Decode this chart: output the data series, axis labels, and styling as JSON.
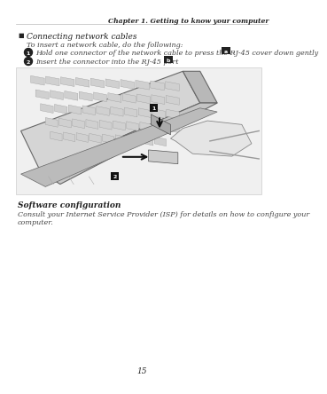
{
  "page_bg": "#ffffff",
  "header_text": "Chapter 1. Getting to know your computer",
  "header_font_size": 5.5,
  "section_bullet": "■",
  "section_title": "Connecting network cables",
  "section_font_size": 6.5,
  "intro_text": "To insert a network cable, do the following:",
  "intro_font_size": 5.8,
  "step1_text": "Hold one connector of the network cable to press the RJ-45 cover down gently",
  "step1_badge": "a",
  "step1_font_size": 5.8,
  "step2_text": "Insert the connector into the RJ-45 port",
  "step2_badge": "b",
  "step2_font_size": 5.8,
  "sw_title": "Software configuration",
  "sw_font_size": 6.5,
  "sw_body": "Consult your Internet Service Provider (ISP) for details on how to configure your computer.",
  "sw_body_font_size": 5.8,
  "footer_text": "15",
  "footer_font_size": 6.5,
  "dark_color": "#222222",
  "text_color": "#444444",
  "light_gray": "#e8e8e8",
  "mid_gray": "#c0c0c0",
  "dark_gray": "#888888",
  "key_color": "#d0d0d0",
  "key_edge": "#999999"
}
